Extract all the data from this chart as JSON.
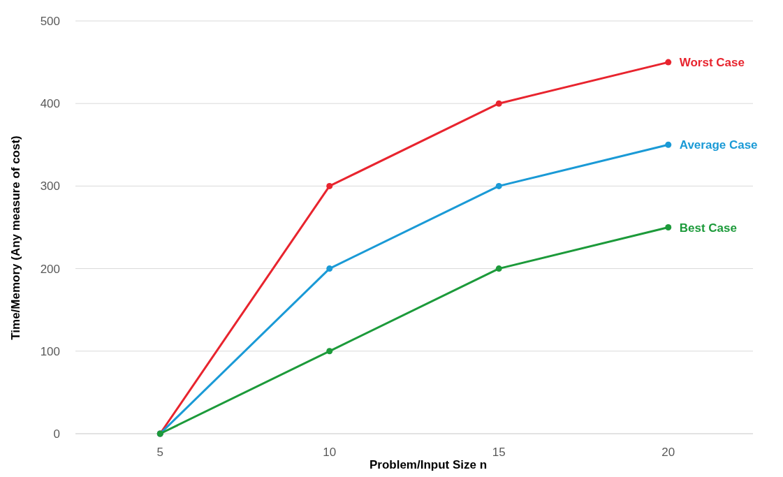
{
  "chart_data": {
    "type": "line",
    "xlabel": "Problem/Input Size n",
    "ylabel": "Time/Memory (Any measure of cost)",
    "categories": [
      "5",
      "10",
      "15",
      "20"
    ],
    "series": [
      {
        "name": "Worst Case",
        "color": "#e8242e",
        "values": [
          0,
          300,
          400,
          450
        ]
      },
      {
        "name": "Average Case",
        "color": "#1a9ad6",
        "values": [
          0,
          200,
          300,
          350
        ]
      },
      {
        "name": "Best Case",
        "color": "#1c9a3a",
        "values": [
          0,
          100,
          200,
          250
        ]
      }
    ],
    "ylim": [
      0,
      500
    ],
    "yticks": [
      0,
      100,
      200,
      300,
      400,
      500
    ],
    "grid": "y",
    "legend": false,
    "marker": "circle",
    "line_style": "solid"
  }
}
